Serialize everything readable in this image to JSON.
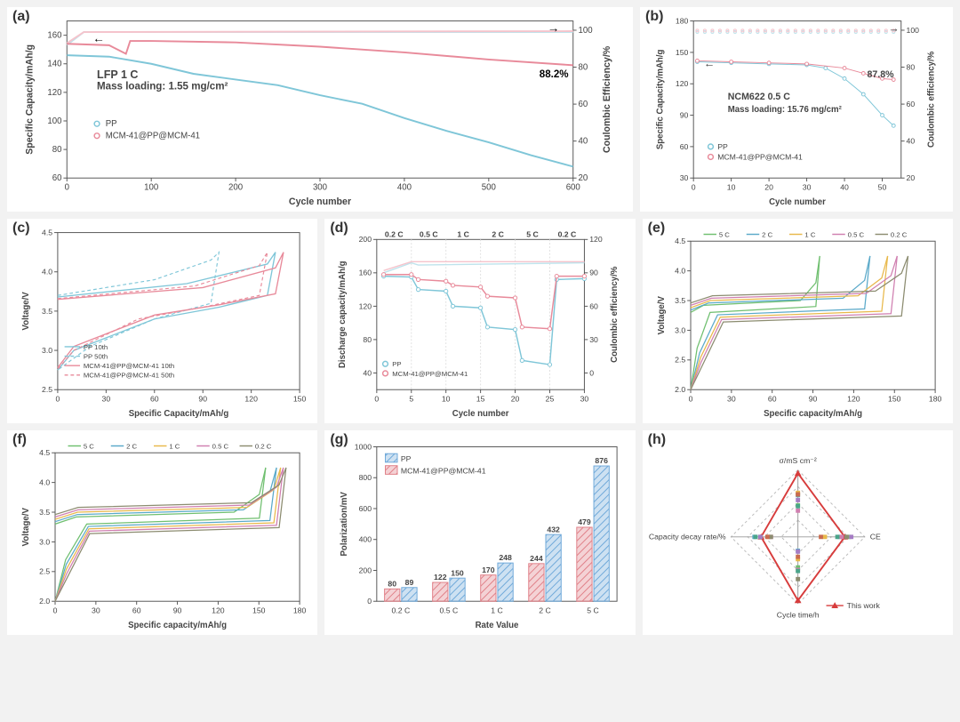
{
  "colors": {
    "pp": "#7fc6d8",
    "mcm": "#e88a9a",
    "pp_ce": "#bfe3ec",
    "mcm_ce": "#f5c4cc",
    "axis": "#555555",
    "grid": "#e0e0e0",
    "text": "#444444",
    "bg": "#ffffff",
    "rate_5c": "#6fbf6f",
    "rate_2c": "#5aa9c9",
    "rate_1c": "#e8b84a",
    "rate_0_5c": "#d07fb0",
    "rate_0_2c": "#8c8c70",
    "bar_pp": "#6ea8d9",
    "bar_mcm": "#e07f87",
    "radar_this": "#d73c3c"
  },
  "panel_labels": {
    "a": "(a)",
    "b": "(b)",
    "c": "(c)",
    "d": "(d)",
    "e": "(e)",
    "f": "(f)",
    "g": "(g)",
    "h": "(h)"
  },
  "a": {
    "xlabel": "Cycle number",
    "y1label": "Specific Capacity/mAh/g",
    "y2label": "Coulombic Efficiency/%",
    "xlim": [
      0,
      600
    ],
    "xticks": [
      0,
      100,
      200,
      300,
      400,
      500,
      600
    ],
    "y1lim": [
      60,
      170
    ],
    "y1ticks": [
      60,
      80,
      100,
      120,
      140,
      160
    ],
    "y2lim": [
      20,
      105
    ],
    "y2ticks": [
      20,
      40,
      60,
      80,
      100
    ],
    "annot1": "LFP 1 C",
    "annot2": "Mass loading: 1.55 mg/cm²",
    "retention": "88.2%",
    "legend": [
      "PP",
      "MCM-41@PP@MCM-41"
    ],
    "pp_cap": [
      [
        0,
        146
      ],
      [
        50,
        145
      ],
      [
        100,
        140
      ],
      [
        150,
        133
      ],
      [
        200,
        129
      ],
      [
        250,
        125
      ],
      [
        300,
        118
      ],
      [
        350,
        112
      ],
      [
        400,
        102
      ],
      [
        450,
        93
      ],
      [
        500,
        85
      ],
      [
        550,
        76
      ],
      [
        600,
        68
      ]
    ],
    "mcm_cap": [
      [
        0,
        154
      ],
      [
        50,
        153
      ],
      [
        70,
        147
      ],
      [
        75,
        156
      ],
      [
        100,
        156
      ],
      [
        200,
        155
      ],
      [
        300,
        152
      ],
      [
        400,
        148
      ],
      [
        500,
        143
      ],
      [
        600,
        139
      ]
    ],
    "pp_ce": [
      [
        0,
        92
      ],
      [
        20,
        99
      ],
      [
        600,
        99
      ]
    ],
    "mcm_ce": [
      [
        0,
        93
      ],
      [
        20,
        99
      ],
      [
        600,
        99.5
      ]
    ]
  },
  "b": {
    "xlabel": "Cycle number",
    "y1label": "Specific Capacity/mAh/g",
    "y2label": "Coulombic efficiency/%",
    "xlim": [
      0,
      55
    ],
    "xticks": [
      0,
      10,
      20,
      30,
      40,
      50
    ],
    "y1lim": [
      30,
      180
    ],
    "y1ticks": [
      30,
      60,
      90,
      120,
      150,
      180
    ],
    "y2lim": [
      20,
      105
    ],
    "y2ticks": [
      20,
      40,
      60,
      80,
      100
    ],
    "annot1": "NCM622 0.5 C",
    "annot2": "Mass loading: 15.76 mg/cm²",
    "retention": "87.8%",
    "legend": [
      "PP",
      "MCM-41@PP@MCM-41"
    ],
    "pp_cap": [
      [
        1,
        141
      ],
      [
        10,
        140
      ],
      [
        20,
        139
      ],
      [
        30,
        138
      ],
      [
        35,
        135
      ],
      [
        40,
        125
      ],
      [
        45,
        110
      ],
      [
        50,
        90
      ],
      [
        53,
        80
      ]
    ],
    "mcm_cap": [
      [
        1,
        142
      ],
      [
        10,
        141
      ],
      [
        20,
        140
      ],
      [
        30,
        139
      ],
      [
        40,
        135
      ],
      [
        45,
        130
      ],
      [
        50,
        125
      ],
      [
        53,
        124
      ]
    ],
    "pp_ce": [
      [
        1,
        97
      ],
      [
        53,
        99
      ]
    ],
    "mcm_ce": [
      [
        1,
        98
      ],
      [
        53,
        99.5
      ]
    ]
  },
  "c": {
    "xlabel": "Specific Capacity/mAh/g",
    "ylabel": "Voltage/V",
    "xlim": [
      0,
      150
    ],
    "xticks": [
      0,
      30,
      60,
      90,
      120,
      150
    ],
    "ylim": [
      2.5,
      4.5
    ],
    "yticks": [
      2.5,
      3.0,
      3.5,
      4.0,
      4.5
    ],
    "legend": [
      "PP 10th",
      "PP 50th",
      "MCM-41@PP@MCM-41 10th",
      "MCM-41@PP@MCM-41 50th"
    ],
    "pp10_ch": [
      [
        0,
        3.68
      ],
      [
        80,
        3.85
      ],
      [
        130,
        4.1
      ],
      [
        135,
        4.25
      ]
    ],
    "pp10_dc": [
      [
        135,
        4.25
      ],
      [
        130,
        3.7
      ],
      [
        100,
        3.55
      ],
      [
        60,
        3.4
      ],
      [
        10,
        3.0
      ],
      [
        0,
        2.75
      ]
    ],
    "pp50_ch": [
      [
        0,
        3.7
      ],
      [
        60,
        3.9
      ],
      [
        95,
        4.15
      ],
      [
        100,
        4.25
      ]
    ],
    "pp50_dc": [
      [
        100,
        4.25
      ],
      [
        95,
        3.6
      ],
      [
        60,
        3.4
      ],
      [
        20,
        3.05
      ],
      [
        0,
        2.75
      ]
    ],
    "mcm10_ch": [
      [
        0,
        3.65
      ],
      [
        90,
        3.8
      ],
      [
        135,
        4.05
      ],
      [
        140,
        4.25
      ]
    ],
    "mcm10_dc": [
      [
        140,
        4.25
      ],
      [
        135,
        3.72
      ],
      [
        100,
        3.58
      ],
      [
        60,
        3.45
      ],
      [
        10,
        3.05
      ],
      [
        0,
        2.78
      ]
    ],
    "mcm50_ch": [
      [
        0,
        3.66
      ],
      [
        85,
        3.82
      ],
      [
        125,
        4.08
      ],
      [
        130,
        4.25
      ]
    ],
    "mcm50_dc": [
      [
        130,
        4.25
      ],
      [
        125,
        3.7
      ],
      [
        90,
        3.55
      ],
      [
        50,
        3.4
      ],
      [
        10,
        3.0
      ],
      [
        0,
        2.76
      ]
    ]
  },
  "d": {
    "xlabel": "Cycle number",
    "y1label": "Discharge capacity/mAh/g",
    "y2label": "Coulombic efficiency/%",
    "xlim": [
      0,
      30
    ],
    "xticks": [
      0,
      5,
      10,
      15,
      20,
      25,
      30
    ],
    "y1lim": [
      20,
      200
    ],
    "y1ticks": [
      40,
      80,
      120,
      160,
      200
    ],
    "y2lim": [
      -15,
      120
    ],
    "y2ticks": [
      0,
      30,
      60,
      90,
      120
    ],
    "rate_labels": [
      "0.2 C",
      "0.5 C",
      "1 C",
      "2 C",
      "5 C",
      "0.2 C"
    ],
    "rate_x": [
      2.5,
      7.5,
      12.5,
      17.5,
      22.5,
      27.5
    ],
    "legend": [
      "PP",
      "MCM-41@PP@MCM-41"
    ],
    "pp": [
      [
        1,
        156
      ],
      [
        5,
        155
      ],
      [
        6,
        140
      ],
      [
        10,
        138
      ],
      [
        11,
        120
      ],
      [
        15,
        118
      ],
      [
        16,
        95
      ],
      [
        20,
        92
      ],
      [
        21,
        55
      ],
      [
        25,
        50
      ],
      [
        26,
        152
      ],
      [
        30,
        153
      ]
    ],
    "mcm": [
      [
        1,
        158
      ],
      [
        5,
        158
      ],
      [
        6,
        152
      ],
      [
        10,
        150
      ],
      [
        11,
        145
      ],
      [
        15,
        143
      ],
      [
        16,
        132
      ],
      [
        20,
        130
      ],
      [
        21,
        95
      ],
      [
        25,
        93
      ],
      [
        26,
        156
      ],
      [
        30,
        156
      ]
    ],
    "pp_ce": [
      [
        1,
        90
      ],
      [
        5,
        99
      ],
      [
        6,
        97
      ],
      [
        30,
        99
      ]
    ],
    "mcm_ce": [
      [
        1,
        92
      ],
      [
        5,
        100
      ],
      [
        30,
        100
      ]
    ]
  },
  "e": {
    "xlabel": "Specific capacity/mAh/g",
    "ylabel": "Voltage/V",
    "xlim": [
      0,
      180
    ],
    "xticks": [
      0,
      30,
      60,
      90,
      120,
      150,
      180
    ],
    "ylim": [
      2.0,
      4.5
    ],
    "yticks": [
      2.0,
      2.5,
      3.0,
      3.5,
      4.0,
      4.5
    ],
    "legend": [
      "5 C",
      "2 C",
      "1 C",
      "0.5 C",
      "0.2 C"
    ],
    "curves": {
      "5 C": {
        "cap": 95,
        "color": "rate_5c"
      },
      "2 C": {
        "cap": 132,
        "color": "rate_2c"
      },
      "1 C": {
        "cap": 145,
        "color": "rate_1c"
      },
      "0.5 C": {
        "cap": 152,
        "color": "rate_0_5c"
      },
      "0.2 C": {
        "cap": 160,
        "color": "rate_0_2c"
      }
    }
  },
  "f": {
    "xlabel": "Specific capacity/mAh/g",
    "ylabel": "Voltage/V",
    "xlim": [
      0,
      180
    ],
    "xticks": [
      0,
      30,
      60,
      90,
      120,
      150,
      180
    ],
    "ylim": [
      2.0,
      4.5
    ],
    "yticks": [
      2.0,
      2.5,
      3.0,
      3.5,
      4.0,
      4.5
    ],
    "legend": [
      "5 C",
      "2 C",
      "1 C",
      "0.5 C",
      "0.2 C"
    ],
    "curves": {
      "5 C": {
        "cap": 155,
        "color": "rate_5c"
      },
      "2 C": {
        "cap": 163,
        "color": "rate_2c"
      },
      "1 C": {
        "cap": 166,
        "color": "rate_1c"
      },
      "0.5 C": {
        "cap": 168,
        "color": "rate_0_5c"
      },
      "0.2 C": {
        "cap": 170,
        "color": "rate_0_2c"
      }
    }
  },
  "g": {
    "xlabel": "Rate Value",
    "ylabel": "Polarization/mV",
    "ylim": [
      0,
      1000
    ],
    "yticks": [
      0,
      200,
      400,
      600,
      800,
      1000
    ],
    "categories": [
      "0.2 C",
      "0.5 C",
      "1 C",
      "2 C",
      "5 C"
    ],
    "legend": [
      "PP",
      "MCM-41@PP@MCM-41"
    ],
    "mcm": [
      80,
      122,
      170,
      244,
      479
    ],
    "pp": [
      89,
      150,
      248,
      432,
      876
    ]
  },
  "h": {
    "axes": [
      "σ/mS cm⁻²",
      "CE",
      "Cycle time/h",
      "Capacity decay rate/%"
    ],
    "legend": "This work",
    "this_work": [
      0.95,
      0.7,
      0.95,
      0.55
    ],
    "others_count": 8
  }
}
